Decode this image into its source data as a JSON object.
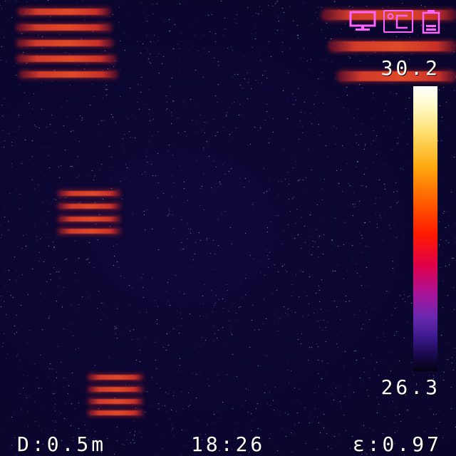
{
  "status_icons": [
    {
      "name": "monitor-icon",
      "color": "#ff63ff"
    },
    {
      "name": "celsius-unit-icon",
      "label": "°C",
      "color": "#ff63ff"
    },
    {
      "name": "battery-icon",
      "color": "#ff63ff"
    }
  ],
  "scale": {
    "max": "30.2",
    "min": "26.3",
    "palette": "iron"
  },
  "footer": {
    "distance": "D:0.5m",
    "time": "18:26",
    "emissivity": "ε:0.97"
  },
  "colors": {
    "background": "#0b0630",
    "hotspot": "#e04a28",
    "icon": "#ff63ff",
    "text": "#ffffff"
  }
}
